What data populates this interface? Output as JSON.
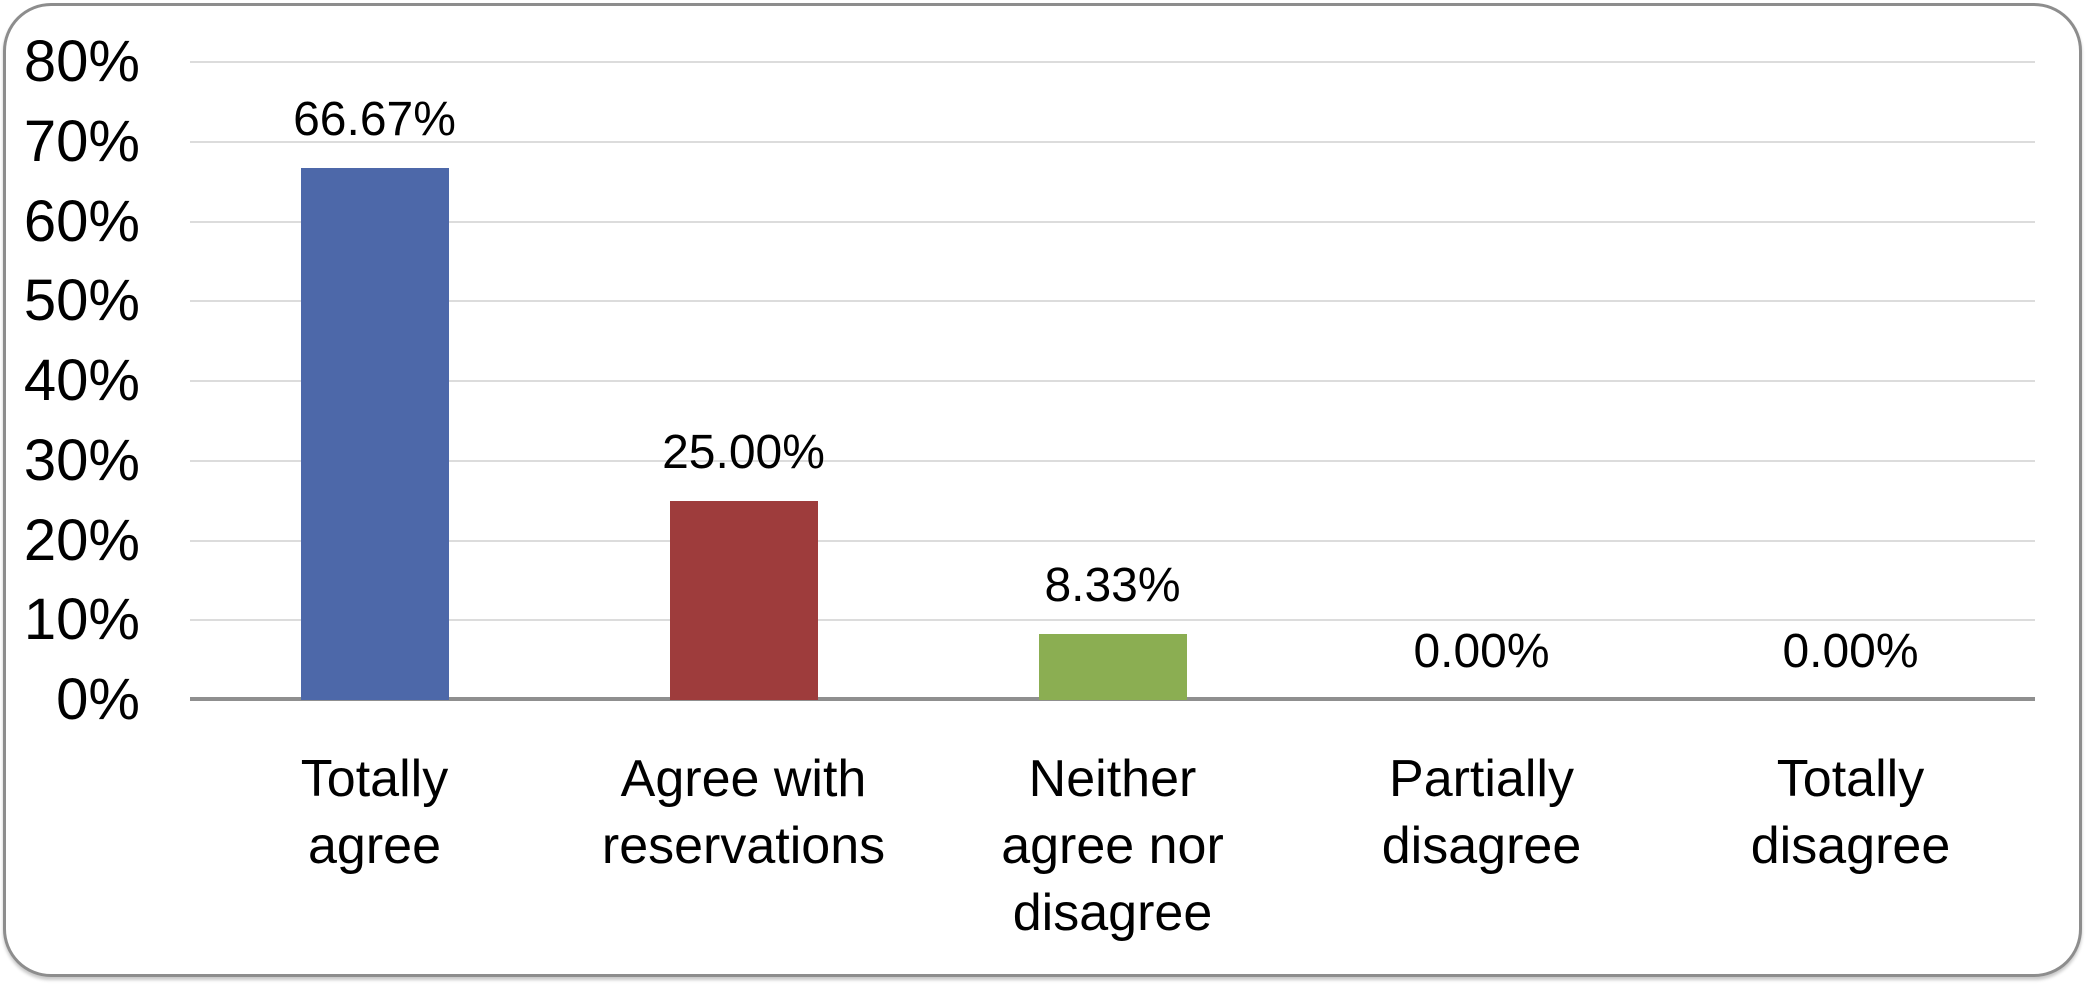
{
  "style": {
    "background": "#FFFFFF",
    "frame_border_color": "#8D8D8D",
    "gridline_color": "#DCDCDC",
    "axis_line_color": "#8F8F8F",
    "text_color": "#000000"
  },
  "chart_data": {
    "type": "bar",
    "title": "",
    "xlabel": "",
    "ylabel": "",
    "categories": [
      "Totally agree",
      "Agree with reservations",
      "Neither agree nor disagree",
      "Partially disagree",
      "Totally disagree"
    ],
    "category_lines": [
      [
        "Totally",
        "agree"
      ],
      [
        "Agree with",
        "reservations"
      ],
      [
        "Neither",
        "agree nor",
        "disagree"
      ],
      [
        "Partially",
        "disagree"
      ],
      [
        "Totally",
        "disagree"
      ]
    ],
    "values": [
      66.67,
      25.0,
      8.33,
      0.0,
      0.0
    ],
    "value_labels": [
      "66.67%",
      "25.00%",
      "8.33%",
      "0.00%",
      "0.00%"
    ],
    "bar_colors": [
      "#4D68A9",
      "#9E3C3C",
      "#8BAE52",
      null,
      null
    ],
    "y_tick_labels": [
      "0%",
      "10%",
      "20%",
      "30%",
      "40%",
      "50%",
      "60%",
      "70%",
      "80%"
    ],
    "ylim": [
      0,
      80
    ],
    "grid": true,
    "legend": false
  }
}
